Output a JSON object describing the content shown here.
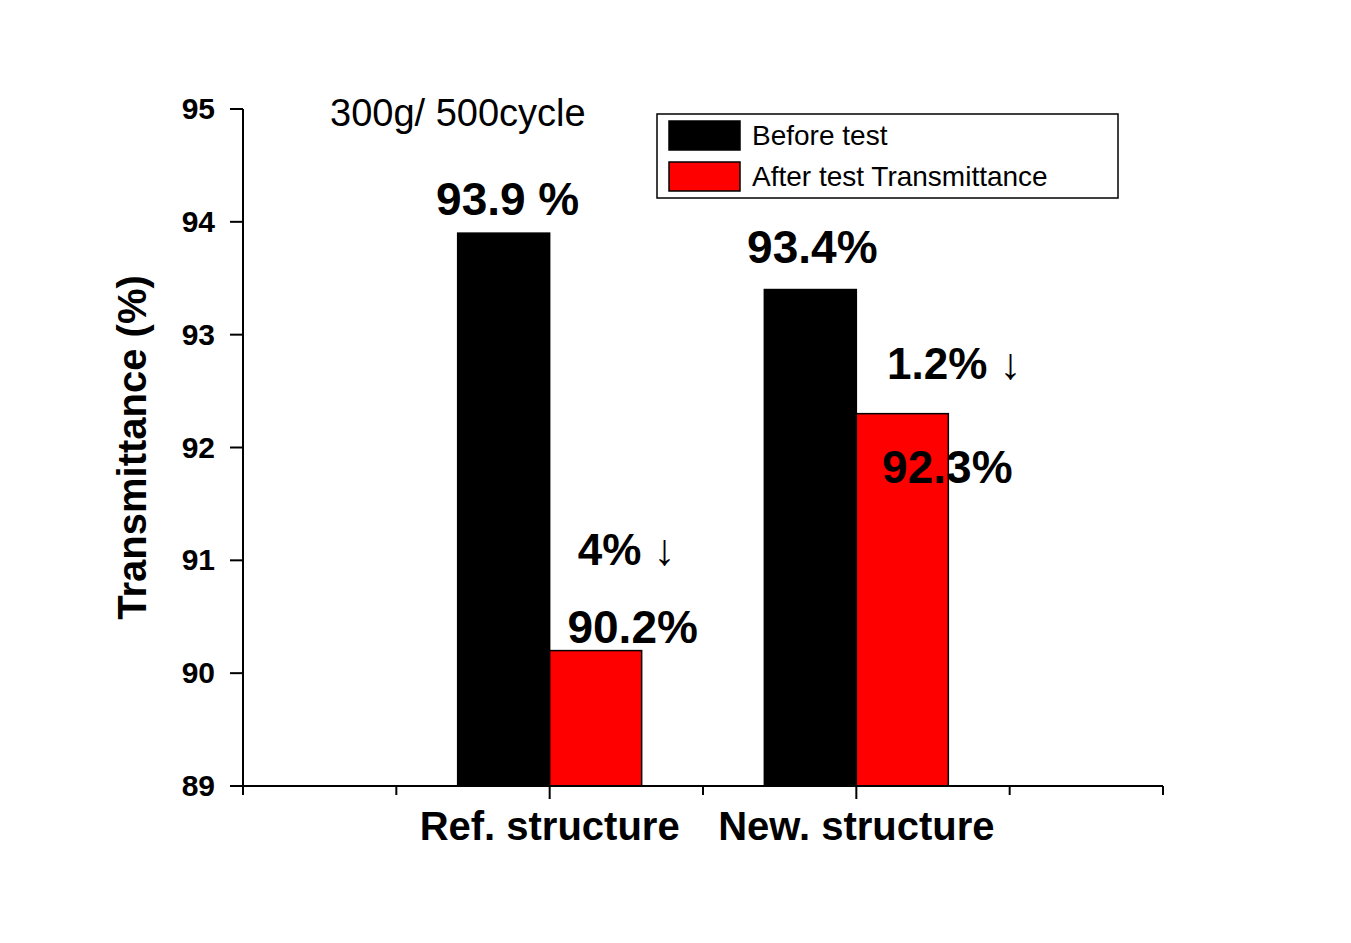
{
  "chart_data": {
    "type": "bar",
    "title": "300g/ 500cycle",
    "y_label": "Transmittance (%)",
    "categories": [
      "Ref. structure",
      "New. structure"
    ],
    "series": [
      {
        "name": "Before test",
        "color": "#000000",
        "values": [
          93.9,
          93.4
        ],
        "value_labels": [
          "93.9 %",
          "93.4%"
        ]
      },
      {
        "name": "After test Transmittance",
        "color": "#ff0000",
        "values": [
          90.2,
          92.3
        ],
        "value_labels": [
          "90.2%",
          "92.3%"
        ]
      }
    ],
    "annotations": [
      "4% ↓",
      "1.2% ↓"
    ],
    "ylim": [
      89,
      95
    ],
    "yticks": [
      89,
      90,
      91,
      92,
      93,
      94,
      95
    ],
    "data_labels": true,
    "legend": "upper right",
    "grid": false
  }
}
